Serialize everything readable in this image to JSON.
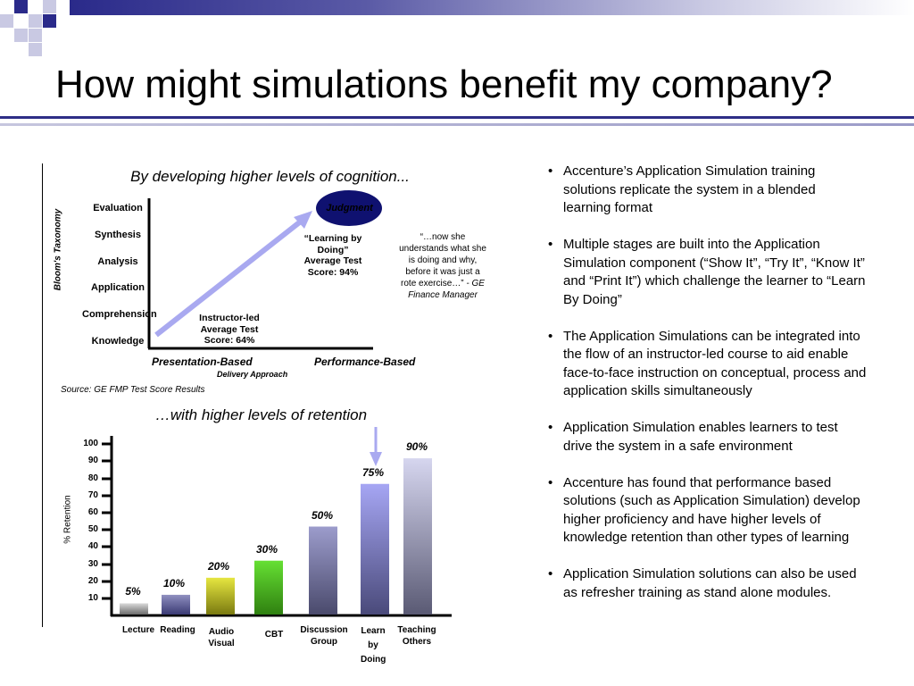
{
  "slide": {
    "title": "How might simulations benefit my company?"
  },
  "cognition": {
    "heading": "By developing higher levels of cognition...",
    "axis_label": "Bloom's Taxonomy",
    "levels": [
      "Evaluation",
      "Synthesis",
      "Analysis",
      "Application",
      "Comprehension",
      "Knowledge"
    ],
    "judgment_label": "Judgment",
    "learning_by_doing": "“Learning by Doing” Average Test Score: 94%",
    "instructor_led": "Instructor-led Average Test Score: 64%",
    "quote": "“…now she understands what she is doing and why, before it was just a rote exercise…”",
    "quote_attribution": "- GE Finance Manager",
    "x_left": "Presentation-Based",
    "x_right": "Performance-Based",
    "x_label": "Delivery Approach",
    "source": "Source:  GE FMP Test Score Results",
    "colors": {
      "arrow": "#a9a9f0",
      "judgment": "#0f1170"
    }
  },
  "retention": {
    "heading": "…with higher levels of retention",
    "chart_data": {
      "type": "bar",
      "ylabel": "% Retention",
      "ylim": [
        0,
        100
      ],
      "yticks": [
        10,
        20,
        30,
        40,
        50,
        60,
        70,
        80,
        90,
        100
      ],
      "categories": [
        "Lecture",
        "Reading",
        "Audio Visual",
        "CBT",
        "Discussion Group",
        "Learn by Doing",
        "Teaching Others"
      ],
      "values": [
        5,
        10,
        20,
        30,
        50,
        75,
        90
      ],
      "data_labels": [
        "5%",
        "10%",
        "20%",
        "30%",
        "50%",
        "75%",
        "90%"
      ],
      "highlight": "Learn by Doing"
    }
  },
  "bullets": [
    "Accenture’s Application Simulation training solutions replicate the system in a blended learning format",
    "Multiple stages are built into the Application Simulation component (“Show It”, “Try It”, “Know It” and “Print It”) which challenge the learner to “Learn By Doing”",
    "The Application Simulations can be integrated into the flow of an instructor-led course to aid enable face-to-face instruction on conceptual, process and application skills simultaneously",
    "Application Simulation enables learners to test drive the system in a safe environment",
    "Accenture has found that performance based solutions (such as Application Simulation) develop higher proficiency and have higher levels of knowledge retention than other types of learning",
    "Application Simulation solutions can also be used as refresher training as stand alone modules."
  ]
}
